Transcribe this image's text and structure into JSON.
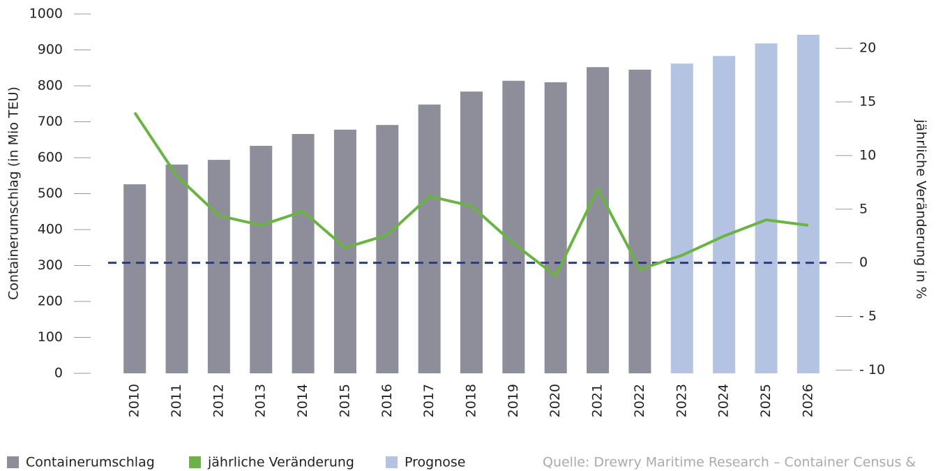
{
  "chart_data": {
    "type": "bar",
    "categories": [
      "2010",
      "2011",
      "2012",
      "2013",
      "2014",
      "2015",
      "2016",
      "2017",
      "2018",
      "2019",
      "2020",
      "2021",
      "2022",
      "2023",
      "2024",
      "2025",
      "2026"
    ],
    "series": [
      {
        "name": "Containerumschlag",
        "color": "#8e8e9a",
        "type": "bar",
        "values": [
          526,
          581,
          594,
          633,
          666,
          678,
          691,
          748,
          784,
          814,
          810,
          852,
          845,
          null,
          null,
          null,
          null
        ]
      },
      {
        "name": "jährliche Veränderung",
        "color": "#6ab344",
        "type": "line",
        "axis": "y2",
        "values": [
          14.0,
          8.1,
          4.4,
          3.5,
          4.8,
          1.4,
          2.6,
          6.2,
          5.3,
          1.8,
          -1.2,
          6.9,
          -0.6,
          0.7,
          2.5,
          4.0,
          3.5
        ]
      },
      {
        "name": "Prognose",
        "color": "#b4c3e2",
        "type": "bar",
        "values": [
          null,
          null,
          null,
          null,
          null,
          null,
          null,
          null,
          null,
          null,
          null,
          null,
          null,
          862,
          883,
          918,
          942
        ]
      }
    ],
    "ylabel": "Containerumschlag (in Mio TEU)",
    "y2label": "jährliche Veränderung in %",
    "ylim": [
      0,
      1000
    ],
    "yticks": [
      0,
      100,
      200,
      300,
      400,
      500,
      600,
      700,
      800,
      900,
      1000
    ],
    "y2lim": [
      -10.3,
      23.2
    ],
    "y2ticks": [
      {
        "value": -10,
        "label": "- 10"
      },
      {
        "value": -5,
        "label": "- 5"
      },
      0,
      5,
      10,
      15,
      20
    ],
    "zero_line": true,
    "zero_line_color": "#2e3a7a",
    "legend": "bottom-left",
    "source": "Quelle: Drewry Maritime Research – Container Census &"
  }
}
